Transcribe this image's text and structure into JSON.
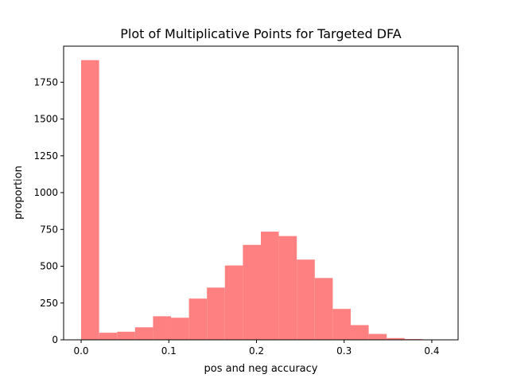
{
  "chart_data": {
    "type": "bar",
    "title": "Plot of Multiplicative Points for Targeted DFA",
    "xlabel": "pos and neg accuracy",
    "ylabel": "proportion",
    "bar_color": "#ff8080",
    "grid": false,
    "xlim": [
      -0.02,
      0.43
    ],
    "ylim": [
      0,
      1995
    ],
    "xticks": [
      0.0,
      0.1,
      0.2,
      0.3,
      0.4
    ],
    "xtick_labels": [
      "0.0",
      "0.1",
      "0.2",
      "0.3",
      "0.4"
    ],
    "yticks": [
      0,
      250,
      500,
      750,
      1000,
      1250,
      1500,
      1750
    ],
    "ytick_labels": [
      "0",
      "250",
      "500",
      "750",
      "1000",
      "1250",
      "1500",
      "1750"
    ],
    "bin_edges": [
      0.0,
      0.0205,
      0.041,
      0.0615,
      0.082,
      0.1025,
      0.123,
      0.1435,
      0.164,
      0.1845,
      0.205,
      0.2255,
      0.246,
      0.2665,
      0.287,
      0.3075,
      0.328,
      0.3485,
      0.369,
      0.3895,
      0.41
    ],
    "values": [
      1900,
      48,
      55,
      85,
      160,
      150,
      280,
      355,
      505,
      645,
      735,
      705,
      545,
      420,
      210,
      100,
      40,
      12,
      5,
      2
    ]
  }
}
